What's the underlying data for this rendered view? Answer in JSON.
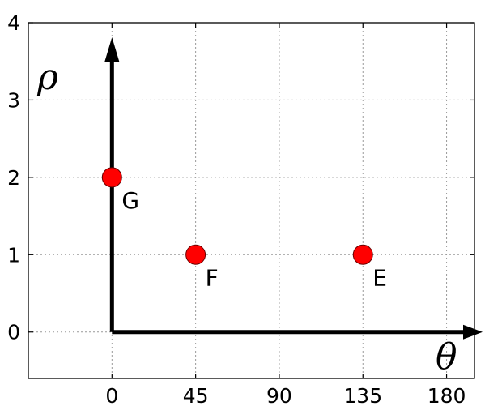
{
  "chart_data": {
    "type": "scatter",
    "title": "",
    "xlabel": "θ",
    "ylabel": "ρ",
    "xlim": [
      -45,
      195
    ],
    "ylim": [
      -0.6,
      4
    ],
    "xticks": [
      0,
      45,
      90,
      135,
      180
    ],
    "yticks": [
      0,
      1,
      2,
      3,
      4
    ],
    "grid": true,
    "points": [
      {
        "label": "G",
        "x": 0,
        "y": 2
      },
      {
        "label": "F",
        "x": 45,
        "y": 1
      },
      {
        "label": "E",
        "x": 135,
        "y": 1
      }
    ],
    "point_color": "#ff0000",
    "axis_arrow_color": "#000000"
  }
}
